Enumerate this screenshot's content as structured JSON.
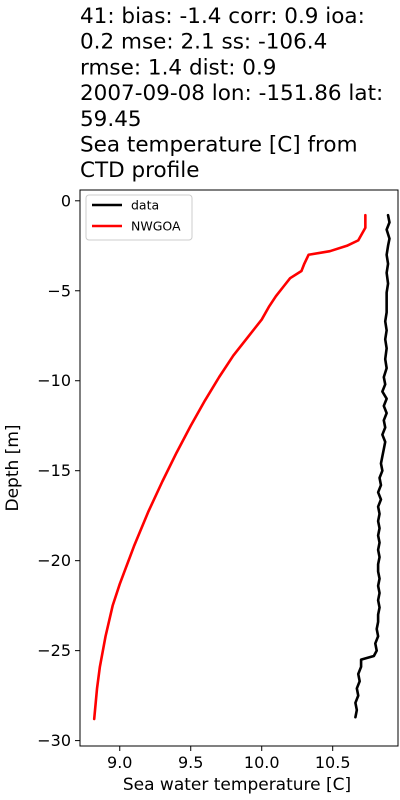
{
  "chart_data": {
    "type": "line",
    "title_lines": [
      "41: bias: -1.4  corr: 0.9  ioa:",
      "0.2  mse: 2.1  ss: -106.4",
      "rmse: 1.4  dist: 0.9",
      "2007-09-08 lon: -151.86 lat:",
      "59.45",
      "Sea temperature [C] from",
      "CTD profile"
    ],
    "xlabel": "Sea water temperature [C]",
    "ylabel": "Depth [m]",
    "xlim": [
      8.72,
      10.96
    ],
    "ylim": [
      -30.3,
      0.6
    ],
    "xticks": [
      9.0,
      9.5,
      10.0,
      10.5
    ],
    "xtick_labels": [
      "9.0",
      "9.5",
      "10.0",
      "10.5"
    ],
    "yticks": [
      0,
      -5,
      -10,
      -15,
      -20,
      -25,
      -30
    ],
    "ytick_labels": [
      "0",
      "−5",
      "−10",
      "−15",
      "−20",
      "−25",
      "−30"
    ],
    "legend_position": "upper-left",
    "series": [
      {
        "name": "data",
        "color": "#000000",
        "points": [
          [
            10.89,
            -0.8
          ],
          [
            10.9,
            -1.2
          ],
          [
            10.88,
            -1.6
          ],
          [
            10.9,
            -2.1
          ],
          [
            10.89,
            -2.5
          ],
          [
            10.88,
            -3.0
          ],
          [
            10.89,
            -3.5
          ],
          [
            10.88,
            -4.0
          ],
          [
            10.89,
            -4.6
          ],
          [
            10.88,
            -5.1
          ],
          [
            10.88,
            -5.6
          ],
          [
            10.88,
            -6.2
          ],
          [
            10.87,
            -6.7
          ],
          [
            10.88,
            -7.2
          ],
          [
            10.87,
            -7.7
          ],
          [
            10.88,
            -8.2
          ],
          [
            10.87,
            -8.8
          ],
          [
            10.88,
            -9.3
          ],
          [
            10.86,
            -9.8
          ],
          [
            10.87,
            -10.2
          ],
          [
            10.85,
            -10.6
          ],
          [
            10.88,
            -11.0
          ],
          [
            10.86,
            -11.4
          ],
          [
            10.88,
            -11.8
          ],
          [
            10.86,
            -12.2
          ],
          [
            10.87,
            -12.6
          ],
          [
            10.85,
            -13.0
          ],
          [
            10.87,
            -13.4
          ],
          [
            10.86,
            -13.8
          ],
          [
            10.85,
            -14.2
          ],
          [
            10.84,
            -14.6
          ],
          [
            10.85,
            -15.0
          ],
          [
            10.83,
            -15.4
          ],
          [
            10.84,
            -15.8
          ],
          [
            10.82,
            -16.2
          ],
          [
            10.84,
            -16.6
          ],
          [
            10.82,
            -17.0
          ],
          [
            10.83,
            -17.4
          ],
          [
            10.82,
            -17.8
          ],
          [
            10.83,
            -18.2
          ],
          [
            10.82,
            -18.6
          ],
          [
            10.83,
            -19.0
          ],
          [
            10.82,
            -19.4
          ],
          [
            10.83,
            -19.8
          ],
          [
            10.82,
            -20.2
          ],
          [
            10.82,
            -20.6
          ],
          [
            10.83,
            -21.0
          ],
          [
            10.82,
            -21.4
          ],
          [
            10.83,
            -21.8
          ],
          [
            10.82,
            -22.2
          ],
          [
            10.83,
            -22.6
          ],
          [
            10.82,
            -23.0
          ],
          [
            10.82,
            -23.4
          ],
          [
            10.81,
            -23.8
          ],
          [
            10.82,
            -24.2
          ],
          [
            10.8,
            -24.6
          ],
          [
            10.81,
            -25.0
          ],
          [
            10.79,
            -25.3
          ],
          [
            10.7,
            -25.5
          ],
          [
            10.7,
            -25.9
          ],
          [
            10.68,
            -26.3
          ],
          [
            10.69,
            -26.7
          ],
          [
            10.67,
            -27.1
          ],
          [
            10.68,
            -27.5
          ],
          [
            10.66,
            -27.9
          ],
          [
            10.67,
            -28.3
          ],
          [
            10.66,
            -28.7
          ]
        ]
      },
      {
        "name": "NWGOA",
        "color": "#ff0000",
        "points": [
          [
            10.73,
            -0.8
          ],
          [
            10.73,
            -1.5
          ],
          [
            10.68,
            -2.2
          ],
          [
            10.6,
            -2.5
          ],
          [
            10.48,
            -2.8
          ],
          [
            10.33,
            -3.0
          ],
          [
            10.3,
            -3.5
          ],
          [
            10.28,
            -3.9
          ],
          [
            10.2,
            -4.3
          ],
          [
            10.16,
            -4.7
          ],
          [
            10.1,
            -5.3
          ],
          [
            10.05,
            -5.9
          ],
          [
            10.0,
            -6.6
          ],
          [
            9.9,
            -7.6
          ],
          [
            9.8,
            -8.6
          ],
          [
            9.7,
            -9.8
          ],
          [
            9.6,
            -11.1
          ],
          [
            9.5,
            -12.5
          ],
          [
            9.4,
            -14.0
          ],
          [
            9.3,
            -15.6
          ],
          [
            9.2,
            -17.3
          ],
          [
            9.1,
            -19.2
          ],
          [
            9.0,
            -21.3
          ],
          [
            8.95,
            -22.5
          ],
          [
            8.9,
            -24.2
          ],
          [
            8.86,
            -25.9
          ],
          [
            8.84,
            -27.1
          ],
          [
            8.82,
            -28.8
          ]
        ]
      }
    ]
  }
}
